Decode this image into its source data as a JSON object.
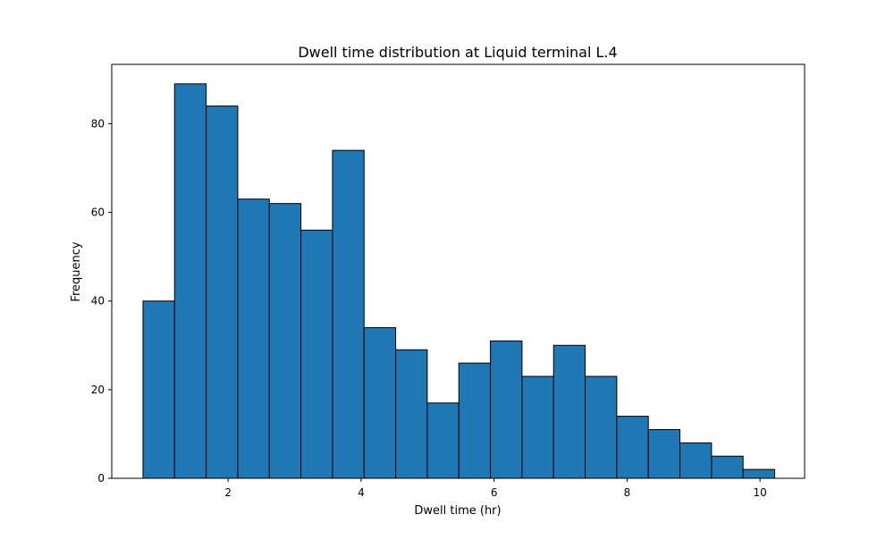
{
  "chart_data": {
    "type": "bar",
    "title": "Dwell time distribution at Liquid terminal L.4",
    "xlabel": "Dwell time (hr)",
    "ylabel": "Frequency",
    "xlim": [
      0.25,
      10.67
    ],
    "ylim": [
      0,
      93.4
    ],
    "xticks": [
      2,
      4,
      6,
      8,
      10
    ],
    "yticks": [
      0,
      20,
      40,
      60,
      80
    ],
    "bin_edges": [
      0.72,
      1.195,
      1.67,
      2.145,
      2.62,
      3.095,
      3.57,
      4.045,
      4.52,
      4.995,
      5.47,
      5.945,
      6.42,
      6.895,
      7.37,
      7.845,
      8.32,
      8.795,
      9.27,
      9.745,
      10.22
    ],
    "values": [
      40,
      89,
      84,
      63,
      62,
      56,
      74,
      34,
      29,
      17,
      26,
      31,
      23,
      30,
      23,
      14,
      11,
      8,
      5,
      2
    ],
    "grid": false,
    "legend": "none",
    "colors": {
      "bar_fill": "#1f77b4",
      "bar_edge": "#000000"
    }
  }
}
